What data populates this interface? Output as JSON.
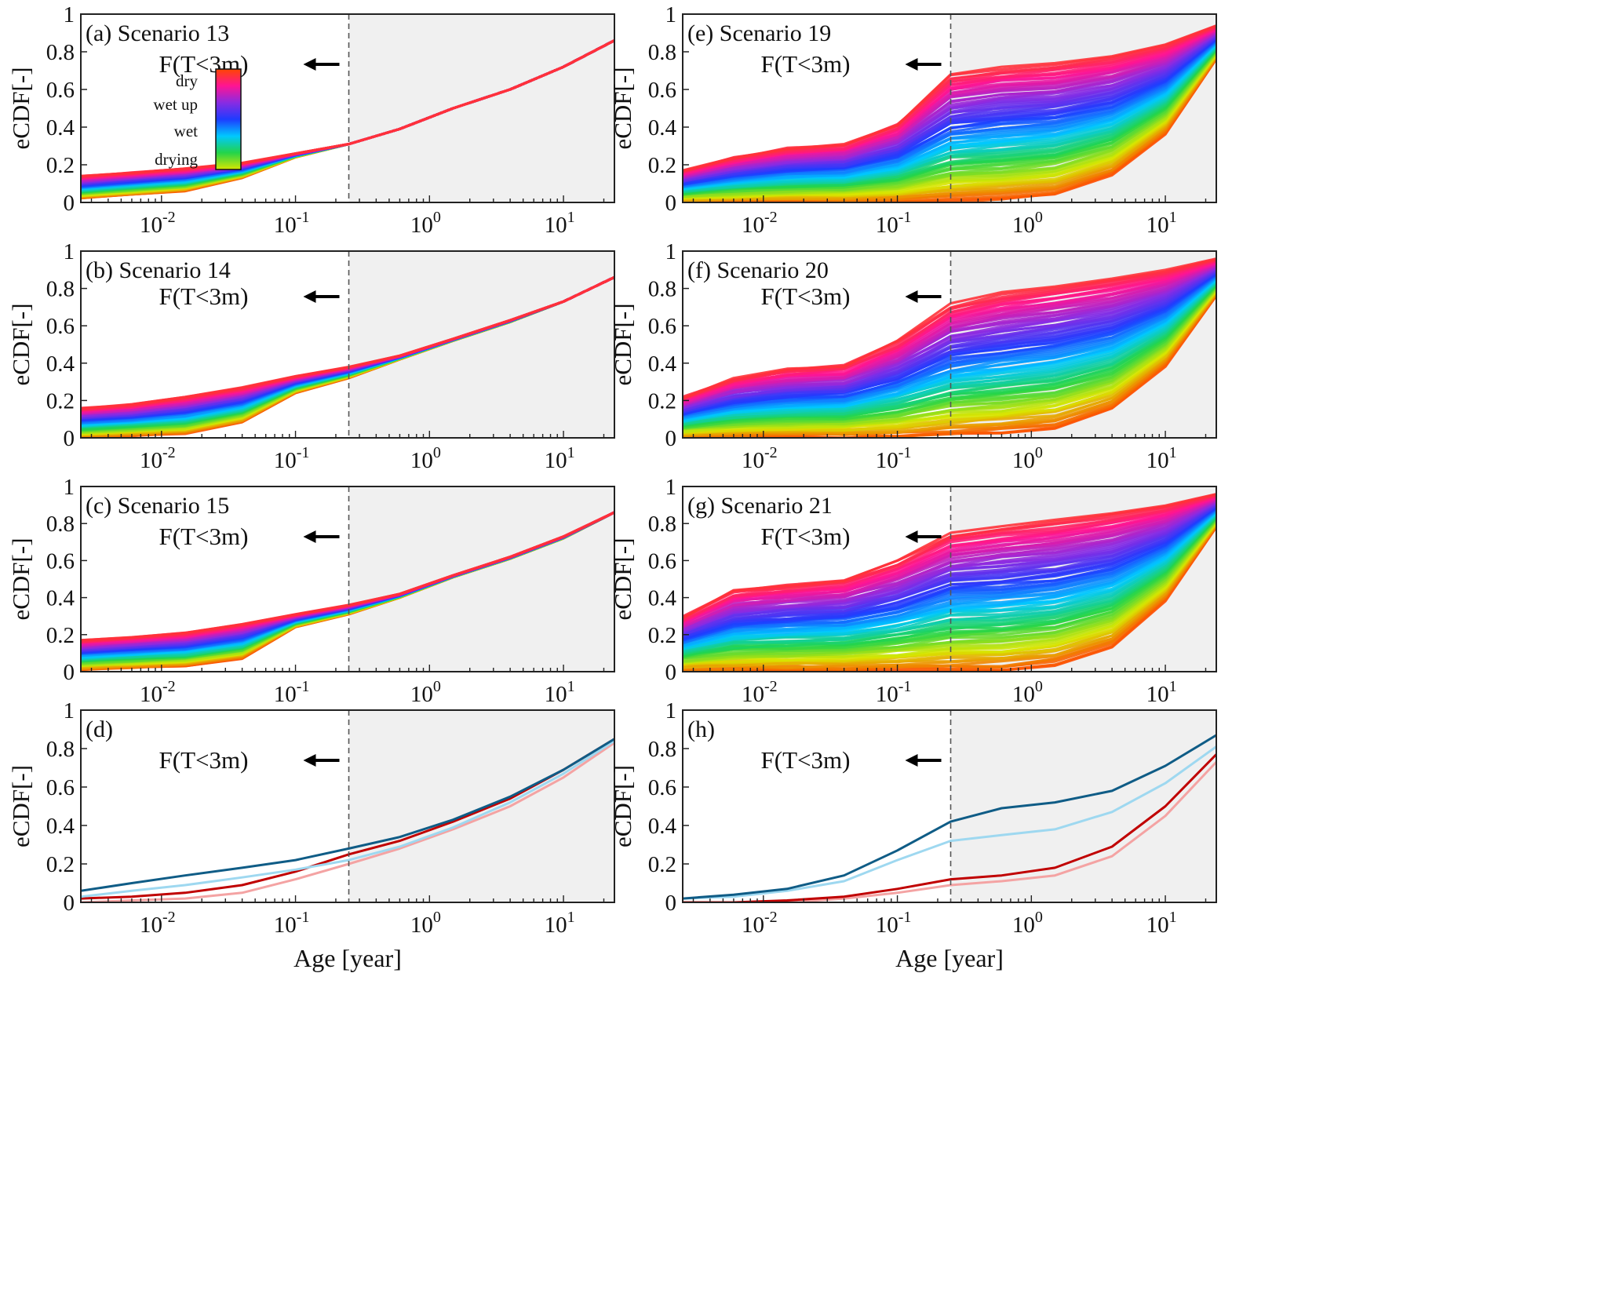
{
  "figure": {
    "x_axis_label": "Age [year]",
    "y_axis_label": "eCDF[-]",
    "x_ticks": [
      "10^-2",
      "10^-1",
      "10^0",
      "10^1"
    ],
    "y_ticks": [
      "0",
      "0.2",
      "0.4",
      "0.6",
      "0.8",
      "1"
    ],
    "annotation": "F(T<3m)"
  },
  "colorbar": {
    "labels": [
      "dry",
      "wet up",
      "wet",
      "drying"
    ],
    "colors": [
      "#ff4500",
      "#ff1493",
      "#8a2be2",
      "#1e3cff",
      "#00c8ff",
      "#22d44a",
      "#d7e600"
    ]
  },
  "chart_data": [
    {
      "panel": "(a)",
      "title": "Scenario 13",
      "type": "line",
      "xscale": "log",
      "xlim": [
        0.0025,
        24
      ],
      "ylim": [
        0,
        1
      ],
      "xlabel": "",
      "ylabel": "eCDF[-]",
      "threshold_age_year": 0.25,
      "shaded_region": [
        0.25,
        24
      ],
      "ensemble": {
        "low": [
          0.02,
          0.04,
          0.06,
          0.13,
          0.24,
          0.31,
          0.39,
          0.5,
          0.6,
          0.72,
          0.86
        ],
        "high": [
          0.14,
          0.16,
          0.18,
          0.21,
          0.26,
          0.31,
          0.39,
          0.5,
          0.6,
          0.72,
          0.86
        ]
      }
    },
    {
      "panel": "(b)",
      "title": "Scenario 14",
      "type": "line",
      "xscale": "log",
      "xlim": [
        0.0025,
        24
      ],
      "ylim": [
        0,
        1
      ],
      "xlabel": "",
      "ylabel": "eCDF[-]",
      "threshold_age_year": 0.25,
      "shaded_region": [
        0.25,
        24
      ],
      "ensemble": {
        "low": [
          0.0,
          0.01,
          0.02,
          0.08,
          0.24,
          0.32,
          0.42,
          0.52,
          0.62,
          0.73,
          0.86
        ],
        "high": [
          0.16,
          0.18,
          0.22,
          0.27,
          0.33,
          0.38,
          0.44,
          0.53,
          0.63,
          0.73,
          0.86
        ]
      }
    },
    {
      "panel": "(c)",
      "title": "Scenario 15",
      "type": "line",
      "xscale": "log",
      "xlim": [
        0.0025,
        24
      ],
      "ylim": [
        0,
        1
      ],
      "xlabel": "",
      "ylabel": "eCDF[-]",
      "threshold_age_year": 0.25,
      "shaded_region": [
        0.25,
        24
      ],
      "ensemble": {
        "low": [
          0.01,
          0.02,
          0.03,
          0.07,
          0.24,
          0.31,
          0.4,
          0.51,
          0.61,
          0.72,
          0.86
        ],
        "high": [
          0.17,
          0.19,
          0.21,
          0.26,
          0.31,
          0.36,
          0.42,
          0.52,
          0.62,
          0.73,
          0.86
        ]
      }
    },
    {
      "panel": "(d)",
      "title": "",
      "type": "line",
      "xscale": "log",
      "xlim": [
        0.0025,
        24
      ],
      "ylim": [
        0,
        1
      ],
      "xlabel": "Age [year]",
      "ylabel": "eCDF[-]",
      "threshold_age_year": 0.25,
      "shaded_region": [
        0.25,
        24
      ],
      "x": [
        0.0025,
        0.006,
        0.015,
        0.04,
        0.1,
        0.25,
        0.6,
        1.5,
        4,
        10,
        24
      ],
      "series": [
        {
          "name": "dark blue",
          "color": "#0f5c86",
          "values": [
            0.06,
            0.1,
            0.14,
            0.18,
            0.22,
            0.28,
            0.34,
            0.43,
            0.55,
            0.69,
            0.85
          ]
        },
        {
          "name": "light blue",
          "color": "#9ed8f0",
          "values": [
            0.03,
            0.06,
            0.09,
            0.13,
            0.17,
            0.22,
            0.29,
            0.39,
            0.52,
            0.67,
            0.84
          ]
        },
        {
          "name": "dark red",
          "color": "#c00000",
          "values": [
            0.02,
            0.03,
            0.05,
            0.09,
            0.16,
            0.25,
            0.32,
            0.42,
            0.54,
            0.69,
            0.85
          ]
        },
        {
          "name": "light red",
          "color": "#f4a3a3",
          "values": [
            0.0,
            0.01,
            0.02,
            0.05,
            0.12,
            0.2,
            0.28,
            0.38,
            0.5,
            0.65,
            0.83
          ]
        }
      ]
    },
    {
      "panel": "(e)",
      "title": "Scenario 19",
      "type": "line",
      "xscale": "log",
      "xlim": [
        0.0025,
        24
      ],
      "ylim": [
        0,
        1
      ],
      "xlabel": "",
      "ylabel": "eCDF[-]",
      "threshold_age_year": 0.25,
      "shaded_region": [
        0.25,
        24
      ],
      "ensemble": {
        "low": [
          0.0,
          0.0,
          0.0,
          0.0,
          0.0,
          0.0,
          0.01,
          0.04,
          0.14,
          0.36,
          0.76
        ],
        "high": [
          0.17,
          0.24,
          0.29,
          0.31,
          0.42,
          0.68,
          0.72,
          0.74,
          0.78,
          0.84,
          0.94
        ]
      }
    },
    {
      "panel": "(f)",
      "title": "Scenario 20",
      "type": "line",
      "xscale": "log",
      "xlim": [
        0.0025,
        24
      ],
      "ylim": [
        0,
        1
      ],
      "xlabel": "",
      "ylabel": "eCDF[-]",
      "threshold_age_year": 0.25,
      "shaded_region": [
        0.25,
        24
      ],
      "ensemble": {
        "low": [
          0.0,
          0.0,
          0.0,
          0.0,
          0.0,
          0.01,
          0.02,
          0.05,
          0.15,
          0.38,
          0.76
        ],
        "high": [
          0.22,
          0.32,
          0.37,
          0.39,
          0.52,
          0.72,
          0.78,
          0.82,
          0.86,
          0.9,
          0.96
        ]
      }
    },
    {
      "panel": "(g)",
      "title": "Scenario 21",
      "type": "line",
      "xscale": "log",
      "xlim": [
        0.0025,
        24
      ],
      "ylim": [
        0,
        1
      ],
      "xlabel": "",
      "ylabel": "eCDF[-]",
      "threshold_age_year": 0.25,
      "shaded_region": [
        0.25,
        24
      ],
      "ensemble": {
        "low": [
          0.0,
          0.0,
          0.0,
          0.0,
          0.0,
          0.0,
          0.0,
          0.03,
          0.13,
          0.38,
          0.78
        ],
        "high": [
          0.3,
          0.44,
          0.47,
          0.5,
          0.6,
          0.75,
          0.79,
          0.82,
          0.86,
          0.9,
          0.96
        ]
      }
    },
    {
      "panel": "(h)",
      "title": "",
      "type": "line",
      "xscale": "log",
      "xlim": [
        0.0025,
        24
      ],
      "ylim": [
        0,
        1
      ],
      "xlabel": "Age [year]",
      "ylabel": "eCDF[-]",
      "threshold_age_year": 0.25,
      "shaded_region": [
        0.25,
        24
      ],
      "x": [
        0.0025,
        0.006,
        0.015,
        0.04,
        0.1,
        0.25,
        0.6,
        1.5,
        4,
        10,
        24
      ],
      "series": [
        {
          "name": "dark blue",
          "color": "#0f5c86",
          "values": [
            0.02,
            0.04,
            0.07,
            0.14,
            0.27,
            0.42,
            0.49,
            0.52,
            0.58,
            0.71,
            0.87
          ]
        },
        {
          "name": "light blue",
          "color": "#9ed8f0",
          "values": [
            0.02,
            0.03,
            0.06,
            0.11,
            0.22,
            0.32,
            0.35,
            0.38,
            0.47,
            0.62,
            0.81
          ]
        },
        {
          "name": "dark red",
          "color": "#c00000",
          "values": [
            0.0,
            0.0,
            0.01,
            0.03,
            0.07,
            0.12,
            0.14,
            0.18,
            0.29,
            0.5,
            0.77
          ]
        },
        {
          "name": "light red",
          "color": "#f4a3a3",
          "values": [
            0.0,
            0.0,
            0.0,
            0.02,
            0.05,
            0.09,
            0.11,
            0.14,
            0.24,
            0.45,
            0.73
          ]
        }
      ]
    }
  ]
}
